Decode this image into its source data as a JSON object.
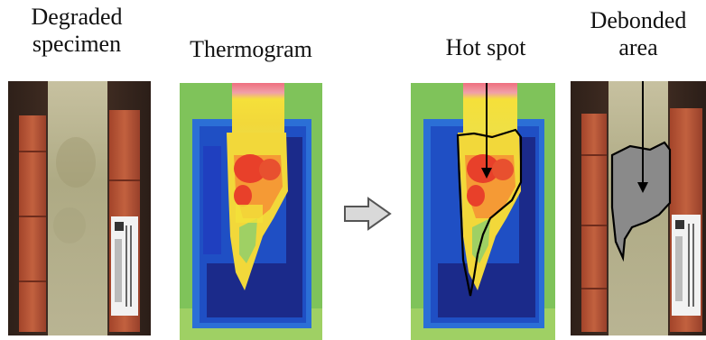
{
  "labels": {
    "degraded_line1": "Degraded",
    "degraded_line2": "specimen",
    "thermogram": "Thermogram",
    "hot_spot": "Hot spot",
    "debonded_line1": "Debonded",
    "debonded_line2": "area"
  },
  "colors": {
    "background": "#ffffff",
    "text": "#111111",
    "brick": "#b5502f",
    "specimen_strip": "#b7b08a",
    "wood_dark": "#3a2a22",
    "thermal_green": "#7fc35a",
    "thermal_blue": "#1f3fbf",
    "thermal_dark_blue": "#1b2a8a",
    "thermal_yellow": "#f2e23a",
    "thermal_red": "#e8402a",
    "thermal_pink": "#ef6f7f",
    "outline": "#000000",
    "debond_fill": "#8a8a8a",
    "arrow_fill": "#d9d9d9"
  },
  "icons": {
    "process_arrow": "block-arrow-right-icon",
    "label_tag": "barcode-label-icon"
  }
}
